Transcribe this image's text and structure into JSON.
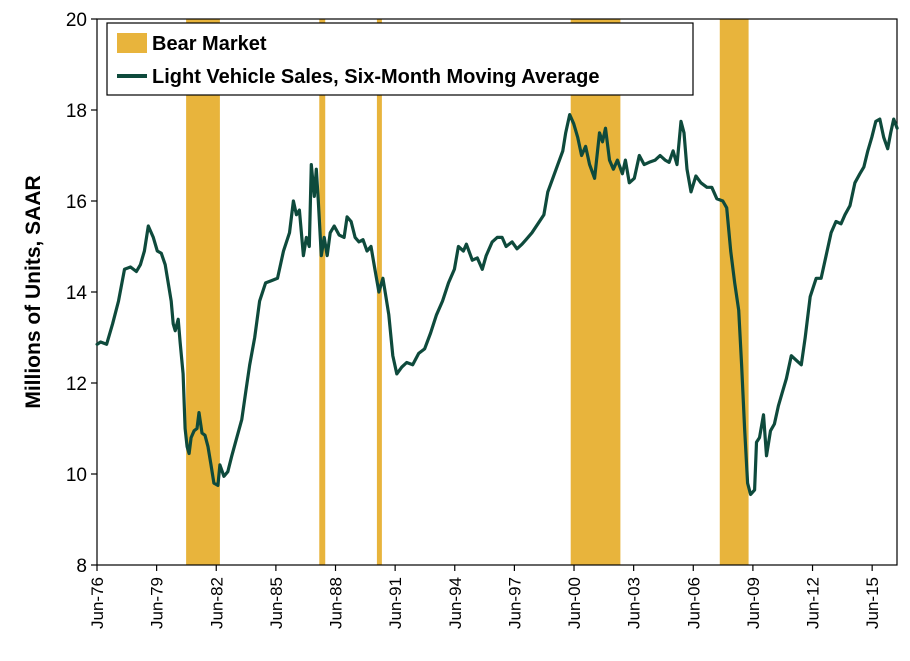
{
  "colors": {
    "bear_market": "#E8B43C",
    "sales_line": "#0E4A3C",
    "axis": "#000000",
    "background": "#FFFFFF"
  },
  "chart_data": {
    "type": "line",
    "title": "",
    "xlabel": "",
    "ylabel": "Millions of Units, SAAR",
    "ylim": [
      8,
      20
    ],
    "yticks": [
      8,
      10,
      12,
      14,
      16,
      18,
      20
    ],
    "xlim": [
      1976.4167,
      2016.6667
    ],
    "xticks": [
      {
        "label": "Jun-76",
        "x": 1976.4167
      },
      {
        "label": "Jun-79",
        "x": 1979.4167
      },
      {
        "label": "Jun-82",
        "x": 1982.4167
      },
      {
        "label": "Jun-85",
        "x": 1985.4167
      },
      {
        "label": "Jun-88",
        "x": 1988.4167
      },
      {
        "label": "Jun-91",
        "x": 1991.4167
      },
      {
        "label": "Jun-94",
        "x": 1994.4167
      },
      {
        "label": "Jun-97",
        "x": 1997.4167
      },
      {
        "label": "Jun-00",
        "x": 2000.4167
      },
      {
        "label": "Jun-03",
        "x": 2003.4167
      },
      {
        "label": "Jun-06",
        "x": 2006.4167
      },
      {
        "label": "Jun-09",
        "x": 2009.4167
      },
      {
        "label": "Jun-12",
        "x": 2012.4167
      },
      {
        "label": "Jun-15",
        "x": 2015.4167
      }
    ],
    "grid": false,
    "legend_position": "top-left",
    "legend": [
      {
        "label": "Bear Market",
        "kind": "bar"
      },
      {
        "label": "Light Vehicle Sales, Six-Month Moving Average",
        "kind": "line"
      }
    ],
    "bear_markets": [
      {
        "start": 1980.9,
        "end": 1982.6
      },
      {
        "start": 1987.6,
        "end": 1987.9
      },
      {
        "start": 1990.5,
        "end": 1990.75
      },
      {
        "start": 2000.25,
        "end": 2002.75
      },
      {
        "start": 2007.75,
        "end": 2009.2
      }
    ],
    "series": [
      {
        "name": "Light Vehicle Sales, Six-Month Moving Average",
        "points": [
          [
            1976.42,
            12.85
          ],
          [
            1976.6,
            12.9
          ],
          [
            1976.9,
            12.85
          ],
          [
            1977.2,
            13.3
          ],
          [
            1977.5,
            13.8
          ],
          [
            1977.8,
            14.5
          ],
          [
            1978.1,
            14.55
          ],
          [
            1978.4,
            14.45
          ],
          [
            1978.6,
            14.6
          ],
          [
            1978.8,
            14.9
          ],
          [
            1979.0,
            15.45
          ],
          [
            1979.25,
            15.2
          ],
          [
            1979.45,
            14.9
          ],
          [
            1979.65,
            14.85
          ],
          [
            1979.85,
            14.6
          ],
          [
            1980.0,
            14.2
          ],
          [
            1980.15,
            13.8
          ],
          [
            1980.25,
            13.3
          ],
          [
            1980.35,
            13.15
          ],
          [
            1980.5,
            13.4
          ],
          [
            1980.6,
            12.9
          ],
          [
            1980.75,
            12.2
          ],
          [
            1980.85,
            11.0
          ],
          [
            1980.95,
            10.6
          ],
          [
            1981.05,
            10.45
          ],
          [
            1981.15,
            10.8
          ],
          [
            1981.3,
            10.95
          ],
          [
            1981.45,
            11.0
          ],
          [
            1981.55,
            11.35
          ],
          [
            1981.7,
            10.9
          ],
          [
            1981.85,
            10.85
          ],
          [
            1982.0,
            10.6
          ],
          [
            1982.15,
            10.2
          ],
          [
            1982.3,
            9.8
          ],
          [
            1982.5,
            9.75
          ],
          [
            1982.6,
            10.2
          ],
          [
            1982.8,
            9.95
          ],
          [
            1983.0,
            10.05
          ],
          [
            1983.2,
            10.4
          ],
          [
            1983.45,
            10.8
          ],
          [
            1983.7,
            11.2
          ],
          [
            1983.9,
            11.8
          ],
          [
            1984.1,
            12.4
          ],
          [
            1984.35,
            13.0
          ],
          [
            1984.6,
            13.8
          ],
          [
            1984.9,
            14.2
          ],
          [
            1985.2,
            14.25
          ],
          [
            1985.5,
            14.3
          ],
          [
            1985.8,
            14.9
          ],
          [
            1986.1,
            15.3
          ],
          [
            1986.3,
            16.0
          ],
          [
            1986.45,
            15.7
          ],
          [
            1986.6,
            15.8
          ],
          [
            1986.8,
            14.8
          ],
          [
            1986.95,
            15.2
          ],
          [
            1987.1,
            15.0
          ],
          [
            1987.2,
            16.8
          ],
          [
            1987.35,
            16.1
          ],
          [
            1987.45,
            16.7
          ],
          [
            1987.55,
            16.0
          ],
          [
            1987.7,
            14.8
          ],
          [
            1987.85,
            15.2
          ],
          [
            1988.0,
            14.8
          ],
          [
            1988.15,
            15.3
          ],
          [
            1988.35,
            15.45
          ],
          [
            1988.6,
            15.25
          ],
          [
            1988.85,
            15.2
          ],
          [
            1989.0,
            15.65
          ],
          [
            1989.2,
            15.55
          ],
          [
            1989.4,
            15.2
          ],
          [
            1989.6,
            15.1
          ],
          [
            1989.8,
            15.15
          ],
          [
            1990.0,
            14.9
          ],
          [
            1990.2,
            15.0
          ],
          [
            1990.4,
            14.5
          ],
          [
            1990.6,
            14.0
          ],
          [
            1990.8,
            14.3
          ],
          [
            1990.95,
            13.9
          ],
          [
            1991.1,
            13.5
          ],
          [
            1991.3,
            12.6
          ],
          [
            1991.5,
            12.2
          ],
          [
            1991.75,
            12.35
          ],
          [
            1992.0,
            12.45
          ],
          [
            1992.3,
            12.4
          ],
          [
            1992.6,
            12.65
          ],
          [
            1992.9,
            12.75
          ],
          [
            1993.2,
            13.1
          ],
          [
            1993.5,
            13.5
          ],
          [
            1993.8,
            13.8
          ],
          [
            1994.1,
            14.2
          ],
          [
            1994.4,
            14.5
          ],
          [
            1994.6,
            15.0
          ],
          [
            1994.85,
            14.9
          ],
          [
            1995.0,
            15.05
          ],
          [
            1995.3,
            14.7
          ],
          [
            1995.55,
            14.75
          ],
          [
            1995.8,
            14.5
          ],
          [
            1996.0,
            14.8
          ],
          [
            1996.3,
            15.1
          ],
          [
            1996.55,
            15.2
          ],
          [
            1996.8,
            15.2
          ],
          [
            1997.0,
            15.0
          ],
          [
            1997.3,
            15.1
          ],
          [
            1997.55,
            14.95
          ],
          [
            1997.8,
            15.05
          ],
          [
            1998.0,
            15.15
          ],
          [
            1998.3,
            15.3
          ],
          [
            1998.6,
            15.5
          ],
          [
            1998.9,
            15.7
          ],
          [
            1999.1,
            16.2
          ],
          [
            1999.35,
            16.5
          ],
          [
            1999.6,
            16.8
          ],
          [
            1999.85,
            17.1
          ],
          [
            2000.0,
            17.5
          ],
          [
            2000.2,
            17.9
          ],
          [
            2000.4,
            17.7
          ],
          [
            2000.6,
            17.4
          ],
          [
            2000.8,
            17.0
          ],
          [
            2001.0,
            17.2
          ],
          [
            2001.2,
            16.8
          ],
          [
            2001.45,
            16.5
          ],
          [
            2001.7,
            17.5
          ],
          [
            2001.85,
            17.3
          ],
          [
            2002.0,
            17.6
          ],
          [
            2002.2,
            16.9
          ],
          [
            2002.4,
            16.7
          ],
          [
            2002.6,
            16.9
          ],
          [
            2002.85,
            16.6
          ],
          [
            2003.0,
            16.9
          ],
          [
            2003.2,
            16.4
          ],
          [
            2003.45,
            16.5
          ],
          [
            2003.7,
            17.0
          ],
          [
            2003.95,
            16.8
          ],
          [
            2004.2,
            16.85
          ],
          [
            2004.5,
            16.9
          ],
          [
            2004.75,
            17.0
          ],
          [
            2005.0,
            16.9
          ],
          [
            2005.2,
            16.85
          ],
          [
            2005.4,
            17.1
          ],
          [
            2005.6,
            16.8
          ],
          [
            2005.8,
            17.75
          ],
          [
            2005.95,
            17.5
          ],
          [
            2006.1,
            16.7
          ],
          [
            2006.3,
            16.2
          ],
          [
            2006.55,
            16.55
          ],
          [
            2006.8,
            16.4
          ],
          [
            2007.1,
            16.3
          ],
          [
            2007.35,
            16.3
          ],
          [
            2007.6,
            16.05
          ],
          [
            2007.9,
            16.0
          ],
          [
            2008.1,
            15.85
          ],
          [
            2008.3,
            14.9
          ],
          [
            2008.5,
            14.2
          ],
          [
            2008.7,
            13.6
          ],
          [
            2008.85,
            12.4
          ],
          [
            2009.0,
            11.0
          ],
          [
            2009.15,
            9.8
          ],
          [
            2009.3,
            9.55
          ],
          [
            2009.5,
            9.65
          ],
          [
            2009.6,
            10.7
          ],
          [
            2009.75,
            10.8
          ],
          [
            2009.95,
            11.3
          ],
          [
            2010.1,
            10.4
          ],
          [
            2010.3,
            10.95
          ],
          [
            2010.5,
            11.1
          ],
          [
            2010.7,
            11.5
          ],
          [
            2010.9,
            11.8
          ],
          [
            2011.1,
            12.1
          ],
          [
            2011.35,
            12.6
          ],
          [
            2011.6,
            12.5
          ],
          [
            2011.85,
            12.4
          ],
          [
            2012.05,
            13.0
          ],
          [
            2012.3,
            13.9
          ],
          [
            2012.6,
            14.3
          ],
          [
            2012.85,
            14.3
          ],
          [
            2013.1,
            14.8
          ],
          [
            2013.35,
            15.3
          ],
          [
            2013.6,
            15.55
          ],
          [
            2013.85,
            15.5
          ],
          [
            2014.05,
            15.7
          ],
          [
            2014.3,
            15.9
          ],
          [
            2014.55,
            16.4
          ],
          [
            2014.8,
            16.6
          ],
          [
            2015.0,
            16.75
          ],
          [
            2015.2,
            17.1
          ],
          [
            2015.4,
            17.4
          ],
          [
            2015.6,
            17.75
          ],
          [
            2015.8,
            17.8
          ],
          [
            2016.0,
            17.4
          ],
          [
            2016.2,
            17.15
          ],
          [
            2016.35,
            17.5
          ],
          [
            2016.5,
            17.8
          ],
          [
            2016.67,
            17.6
          ]
        ]
      }
    ]
  }
}
